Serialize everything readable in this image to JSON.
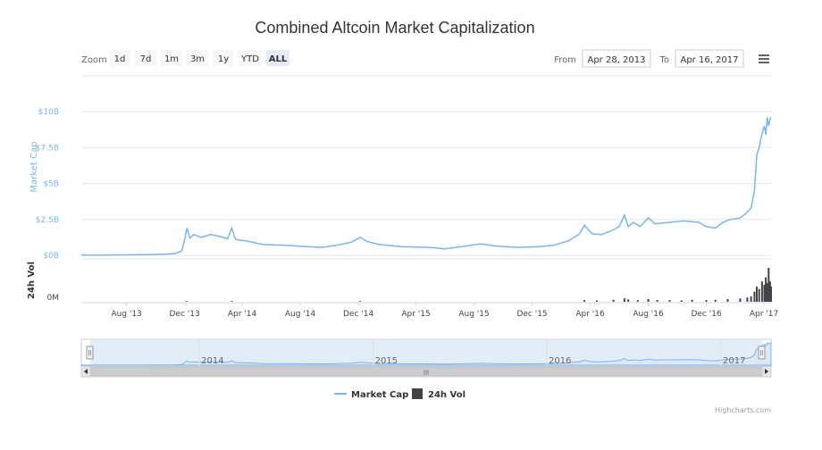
{
  "chart_data": {
    "type": "line",
    "title": "Combined Altcoin Market Capitalization",
    "range_selector": {
      "zoom_label": "Zoom",
      "buttons": [
        "1d",
        "7d",
        "1m",
        "3m",
        "1y",
        "YTD",
        "ALL"
      ],
      "selected": "ALL",
      "from_label": "From",
      "from_value": "Apr 28, 2013",
      "to_label": "To",
      "to_value": "Apr 16, 2017"
    },
    "x_range": [
      "2013-04-28",
      "2017-04-16"
    ],
    "x_tick_labels": [
      "Aug '13",
      "Dec '13",
      "Apr '14",
      "Aug '14",
      "Dec '14",
      "Apr '15",
      "Aug '15",
      "Dec '15",
      "Apr '16",
      "Aug '16",
      "Dec '16",
      "Apr '17"
    ],
    "x_tick_dates": [
      "2013-08-01",
      "2013-12-01",
      "2014-04-01",
      "2014-08-01",
      "2014-12-01",
      "2015-04-01",
      "2015-08-01",
      "2015-12-01",
      "2016-04-01",
      "2016-08-01",
      "2016-12-01",
      "2017-04-01"
    ],
    "grid": true,
    "legend_position": "bottom-center",
    "panes": [
      {
        "ylabel": "Market Cap",
        "ylim": [
          0,
          10
        ],
        "ytick_values": [
          0,
          2.5,
          5,
          7.5,
          10
        ],
        "ytick_labels": [
          "$0B",
          "$2.5B",
          "$5B",
          "$7.5B",
          "$10B"
        ]
      },
      {
        "ylabel": "24h Vol",
        "ytick_values": [
          0
        ],
        "ytick_labels": [
          "0M"
        ]
      }
    ],
    "series": [
      {
        "name": "Market Cap",
        "unit": "$B",
        "color": "#7cb5ec",
        "points": [
          [
            "2013-04-28",
            0.03
          ],
          [
            "2013-06-01",
            0.02
          ],
          [
            "2013-07-15",
            0.03
          ],
          [
            "2013-09-01",
            0.05
          ],
          [
            "2013-10-15",
            0.08
          ],
          [
            "2013-11-10",
            0.12
          ],
          [
            "2013-11-25",
            0.3
          ],
          [
            "2013-12-02",
            1.2
          ],
          [
            "2013-12-06",
            1.9
          ],
          [
            "2013-12-12",
            1.2
          ],
          [
            "2013-12-20",
            1.45
          ],
          [
            "2014-01-05",
            1.25
          ],
          [
            "2014-01-25",
            1.45
          ],
          [
            "2014-02-15",
            1.3
          ],
          [
            "2014-03-01",
            1.15
          ],
          [
            "2014-03-10",
            1.9
          ],
          [
            "2014-03-18",
            1.1
          ],
          [
            "2014-04-10",
            1.0
          ],
          [
            "2014-05-15",
            0.75
          ],
          [
            "2014-07-01",
            0.7
          ],
          [
            "2014-08-15",
            0.6
          ],
          [
            "2014-09-15",
            0.55
          ],
          [
            "2014-10-15",
            0.7
          ],
          [
            "2014-11-15",
            0.9
          ],
          [
            "2014-12-05",
            1.25
          ],
          [
            "2014-12-20",
            0.95
          ],
          [
            "2015-01-15",
            0.75
          ],
          [
            "2015-03-01",
            0.6
          ],
          [
            "2015-05-01",
            0.55
          ],
          [
            "2015-06-01",
            0.45
          ],
          [
            "2015-07-15",
            0.65
          ],
          [
            "2015-08-15",
            0.8
          ],
          [
            "2015-09-15",
            0.65
          ],
          [
            "2015-11-01",
            0.55
          ],
          [
            "2015-12-15",
            0.6
          ],
          [
            "2016-01-15",
            0.7
          ],
          [
            "2016-02-15",
            1.0
          ],
          [
            "2016-03-10",
            1.5
          ],
          [
            "2016-03-20",
            2.1
          ],
          [
            "2016-04-05",
            1.5
          ],
          [
            "2016-04-25",
            1.45
          ],
          [
            "2016-05-15",
            1.7
          ],
          [
            "2016-06-01",
            2.0
          ],
          [
            "2016-06-12",
            2.8
          ],
          [
            "2016-06-20",
            2.0
          ],
          [
            "2016-07-01",
            2.3
          ],
          [
            "2016-07-15",
            2.0
          ],
          [
            "2016-08-01",
            2.6
          ],
          [
            "2016-08-15",
            2.2
          ],
          [
            "2016-09-15",
            2.3
          ],
          [
            "2016-10-15",
            2.4
          ],
          [
            "2016-11-15",
            2.3
          ],
          [
            "2016-12-01",
            2.0
          ],
          [
            "2016-12-20",
            1.9
          ],
          [
            "2017-01-05",
            2.3
          ],
          [
            "2017-01-20",
            2.5
          ],
          [
            "2017-02-10",
            2.6
          ],
          [
            "2017-02-25",
            3.0
          ],
          [
            "2017-03-05",
            3.3
          ],
          [
            "2017-03-12",
            4.5
          ],
          [
            "2017-03-17",
            7.0
          ],
          [
            "2017-03-22",
            7.5
          ],
          [
            "2017-03-28",
            8.5
          ],
          [
            "2017-04-02",
            9.0
          ],
          [
            "2017-04-05",
            8.4
          ],
          [
            "2017-04-08",
            9.6
          ],
          [
            "2017-04-11",
            9.0
          ],
          [
            "2017-04-14",
            9.5
          ],
          [
            "2017-04-16",
            9.6
          ]
        ]
      },
      {
        "name": "24h Vol",
        "unit": "relative",
        "color": "#434348",
        "points": [
          [
            "2013-12-05",
            0.02
          ],
          [
            "2014-03-10",
            0.02
          ],
          [
            "2014-12-05",
            0.02
          ],
          [
            "2016-03-20",
            0.05
          ],
          [
            "2016-04-15",
            0.04
          ],
          [
            "2016-05-20",
            0.06
          ],
          [
            "2016-06-12",
            0.1
          ],
          [
            "2016-06-20",
            0.07
          ],
          [
            "2016-07-10",
            0.05
          ],
          [
            "2016-08-01",
            0.08
          ],
          [
            "2016-08-20",
            0.05
          ],
          [
            "2016-09-15",
            0.05
          ],
          [
            "2016-10-10",
            0.04
          ],
          [
            "2016-11-01",
            0.06
          ],
          [
            "2016-12-01",
            0.05
          ],
          [
            "2016-12-20",
            0.06
          ],
          [
            "2017-01-15",
            0.08
          ],
          [
            "2017-02-10",
            0.1
          ],
          [
            "2017-02-25",
            0.13
          ],
          [
            "2017-03-05",
            0.16
          ],
          [
            "2017-03-12",
            0.3
          ],
          [
            "2017-03-17",
            0.45
          ],
          [
            "2017-03-22",
            0.38
          ],
          [
            "2017-03-28",
            0.6
          ],
          [
            "2017-04-02",
            0.5
          ],
          [
            "2017-04-05",
            0.72
          ],
          [
            "2017-04-08",
            0.55
          ],
          [
            "2017-04-11",
            1.0
          ],
          [
            "2017-04-14",
            0.6
          ],
          [
            "2017-04-16",
            0.45
          ]
        ]
      }
    ],
    "navigator": {
      "year_labels": [
        "2014",
        "2015",
        "2016",
        "2017"
      ],
      "scrollbar_grip": "III"
    },
    "menu_icon": "hamburger-menu-icon",
    "credits": "Highcharts.com"
  }
}
